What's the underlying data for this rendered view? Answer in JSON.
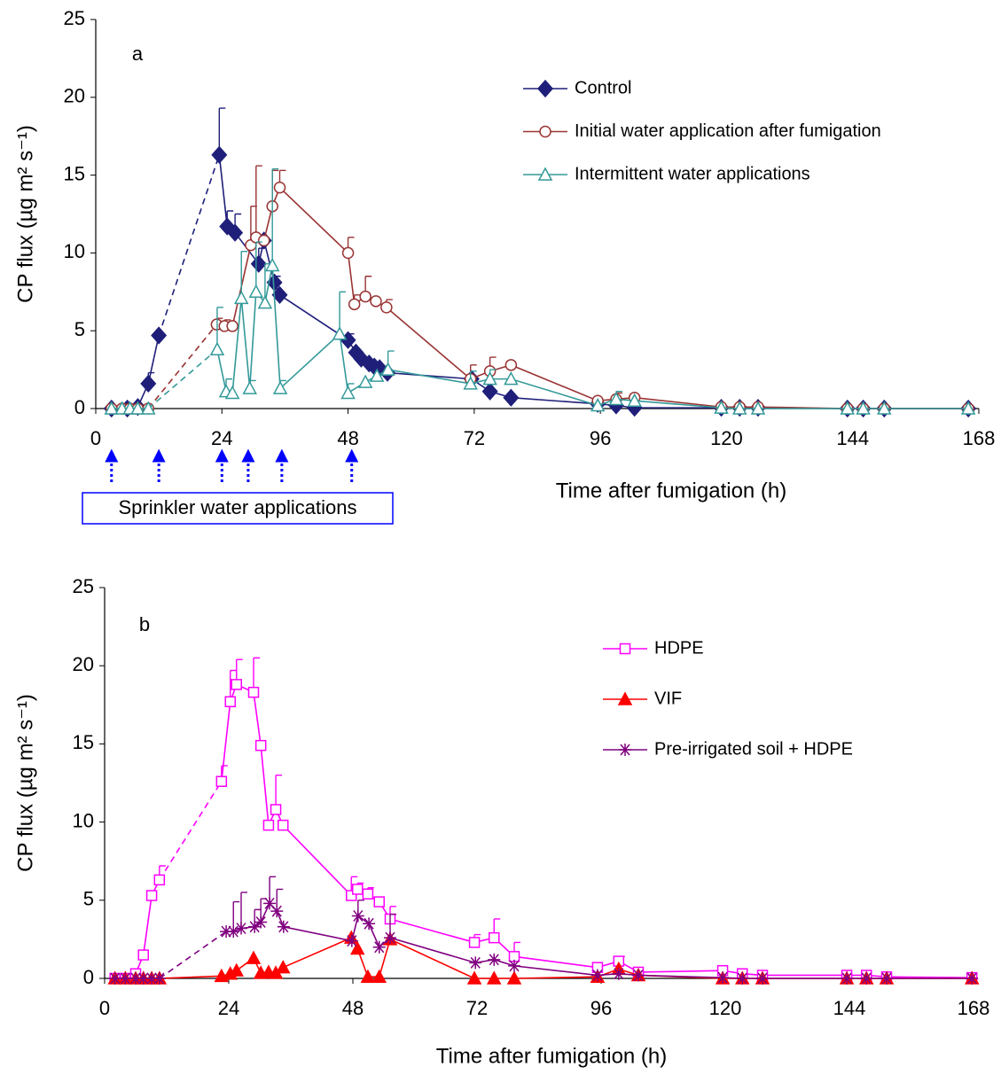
{
  "chart_data": [
    {
      "type": "line",
      "panel_label": "a",
      "x_label": "Time after fumigation (h)",
      "y_label": "CP flux (µg m² s⁻¹)",
      "xlim": [
        0,
        168
      ],
      "xticks": [
        0,
        24,
        48,
        72,
        96,
        120,
        144,
        168
      ],
      "ylim": [
        0,
        25
      ],
      "yticks": [
        0,
        5,
        10,
        15,
        20,
        25
      ],
      "grid": false,
      "legend": "upper right",
      "annotation": "Sprinkler water applications",
      "annotation_color": "#0000ff",
      "sprinkler_times": [
        3,
        12,
        24,
        29,
        35.4,
        48.7
      ],
      "series": [
        {
          "name": "Control",
          "color": "#1f1f7a",
          "marker": "diamond",
          "filled": true,
          "dashed_after": 4,
          "x": [
            3,
            6,
            8,
            10,
            12,
            23.5,
            25,
            26.5,
            31,
            32,
            34,
            35,
            48,
            49.5,
            50.5,
            52,
            53,
            54,
            55.5,
            71.5,
            75,
            79,
            95.5,
            99,
            102.5,
            119,
            122.5,
            126,
            143,
            146,
            150,
            166
          ],
          "values": [
            0,
            0,
            0.1,
            1.6,
            4.7,
            16.3,
            11.7,
            11.3,
            9.3,
            10.8,
            8.1,
            7.3,
            4.4,
            3.6,
            3.2,
            2.9,
            2.7,
            2.6,
            2.3,
            1.9,
            1.1,
            0.7,
            0.3,
            0.2,
            0.05,
            0.05,
            0.05,
            0.05,
            0,
            0,
            0,
            0
          ],
          "errors": [
            0,
            0,
            0,
            0.7,
            0,
            3,
            1,
            1.2,
            1,
            0,
            0.4,
            0,
            0.4,
            0,
            0,
            0,
            0,
            0,
            0,
            0,
            0,
            0,
            0,
            0,
            0,
            0,
            0,
            0,
            0,
            0,
            0,
            0
          ]
        },
        {
          "name": "Initial water application after fumigation",
          "color": "#993333",
          "marker": "circle",
          "filled": false,
          "dashed_after": 4,
          "x": [
            3,
            5,
            6.5,
            8,
            10,
            23,
            24.5,
            26,
            29.5,
            30.5,
            32,
            33.6,
            35,
            48,
            49.2,
            51.3,
            53.3,
            55.3,
            71.3,
            75,
            79,
            95.5,
            99,
            102.5,
            119,
            122.5,
            126,
            143,
            146,
            150,
            166
          ],
          "values": [
            0,
            0,
            0,
            0,
            0,
            5.4,
            5.3,
            5.3,
            10.5,
            11.0,
            10.8,
            13.0,
            14.2,
            10.0,
            6.7,
            7.2,
            6.9,
            6.5,
            1.9,
            2.4,
            2.8,
            0.5,
            0.6,
            0.7,
            0.1,
            0.1,
            0.1,
            0,
            0,
            0,
            0
          ],
          "errors": [
            0,
            0,
            0,
            0,
            0,
            0.4,
            0.4,
            0,
            2.5,
            4.6,
            0,
            2.3,
            1.1,
            1.0,
            0.6,
            1.3,
            0,
            0.5,
            0.9,
            0.9,
            0,
            0,
            0.4,
            0,
            0,
            0,
            0,
            0,
            0,
            0,
            0
          ]
        },
        {
          "name": "Intermittent water applications",
          "color": "#339999",
          "marker": "triangle",
          "filled": false,
          "dashed_after": 4,
          "x": [
            3,
            5,
            6.5,
            8,
            10,
            23.1,
            24.8,
            26,
            27.7,
            29.3,
            30.5,
            32.2,
            33.6,
            35.1,
            46.4,
            48,
            51.3,
            53.5,
            55.6,
            71.3,
            75,
            79,
            95.5,
            99,
            102.5,
            119,
            122.5,
            126,
            143,
            146,
            150,
            166
          ],
          "values": [
            0,
            0,
            0,
            0,
            0,
            3.8,
            1.1,
            1.0,
            7.1,
            1.3,
            7.5,
            6.8,
            9.2,
            1.3,
            4.8,
            1.0,
            1.7,
            2.1,
            2.5,
            1.6,
            1.9,
            1.9,
            0.2,
            0.6,
            0.5,
            0.05,
            0,
            0,
            0,
            0,
            0,
            0
          ],
          "errors": [
            0,
            0,
            0,
            0,
            0,
            2.7,
            0.8,
            0,
            3,
            0.5,
            3.2,
            2.5,
            6.2,
            0.5,
            2.7,
            0.6,
            0,
            0,
            1.2,
            0.8,
            0.6,
            0,
            0,
            0.5,
            0,
            0,
            0,
            0,
            0,
            0,
            0,
            0
          ]
        }
      ]
    },
    {
      "type": "line",
      "panel_label": "b",
      "x_label": "Time after fumigation (h)",
      "y_label": "CP flux (µg m² s⁻¹)",
      "xlim": [
        0,
        168
      ],
      "xticks": [
        0,
        24,
        48,
        72,
        96,
        120,
        144,
        168
      ],
      "ylim": [
        0,
        25
      ],
      "yticks": [
        0,
        5,
        10,
        15,
        20,
        25
      ],
      "grid": false,
      "legend": "upper right",
      "series": [
        {
          "name": "HDPE",
          "color": "#ff00ff",
          "marker": "square",
          "filled": false,
          "dashed_after": 5,
          "x": [
            2,
            4,
            6,
            7.5,
            9.1,
            10.6,
            22.6,
            24.3,
            25.5,
            28.8,
            30.2,
            31.7,
            33.1,
            34.5,
            47.7,
            48.9,
            50.9,
            53.1,
            55.2,
            71.5,
            75.3,
            79.2,
            95.3,
            99.4,
            103.2,
            119.5,
            123.3,
            127.2,
            143.5,
            147.3,
            151.2,
            167.7
          ],
          "values": [
            0,
            0,
            0.3,
            1.5,
            5.3,
            6.3,
            12.6,
            17.7,
            18.8,
            18.3,
            14.9,
            9.8,
            10.8,
            9.8,
            5.3,
            5.7,
            5.4,
            4.9,
            3.8,
            2.3,
            2.6,
            1.4,
            0.7,
            1.1,
            0.4,
            0.5,
            0.3,
            0.2,
            0.2,
            0.2,
            0.1,
            0.05
          ],
          "errors": [
            0,
            0,
            0,
            0,
            0,
            0.9,
            1.0,
            2.0,
            1.6,
            2.2,
            0,
            0,
            2.2,
            0,
            1.2,
            0.4,
            0.4,
            0,
            0.8,
            0.5,
            1.2,
            0.9,
            0,
            0.3,
            0,
            0,
            0,
            0,
            0,
            0,
            0,
            0
          ]
        },
        {
          "name": "VIF",
          "color": "#ff0000",
          "marker": "triangle",
          "filled": true,
          "x": [
            2,
            4,
            6,
            7.5,
            9.1,
            10.6,
            22.6,
            24.3,
            25.5,
            28.8,
            30.2,
            31.7,
            33.1,
            34.5,
            47.7,
            48.9,
            50.9,
            53.1,
            55.2,
            71.5,
            75.3,
            79.2,
            95.3,
            99.4,
            103.2,
            119.5,
            123.3,
            127.2,
            143.5,
            147.3,
            151.2,
            167.7
          ],
          "values": [
            0,
            0,
            0,
            0,
            0,
            0,
            0.15,
            0.3,
            0.5,
            1.3,
            0.35,
            0.4,
            0.35,
            0.7,
            2.6,
            1.9,
            0.1,
            0.1,
            2.5,
            0,
            0,
            0,
            0.1,
            0.6,
            0.2,
            0,
            0,
            0,
            0,
            0,
            0,
            0
          ]
        },
        {
          "name": "Pre-irrigated soil + HDPE",
          "color": "#800080",
          "marker": "star",
          "filled": false,
          "dashed_after": 5,
          "x": [
            2,
            4,
            6,
            7.5,
            9.1,
            10.6,
            23.5,
            24.9,
            26.4,
            29,
            30.2,
            31.9,
            33.3,
            34.6,
            47.8,
            49,
            51.1,
            53.1,
            55.2,
            71.7,
            75.3,
            79.2,
            95.3,
            99.4,
            103.2,
            119.5,
            123.3,
            127.2,
            143.5,
            147.3,
            151.2,
            167.7
          ],
          "values": [
            0,
            0,
            0,
            0,
            0,
            0,
            3.0,
            3.0,
            3.2,
            3.3,
            3.6,
            4.8,
            4.3,
            3.3,
            2.4,
            4.0,
            3.5,
            2.0,
            2.6,
            1.0,
            1.2,
            0.8,
            0.2,
            0.3,
            0.2,
            0.05,
            0,
            0,
            0,
            0,
            0,
            0
          ],
          "errors": [
            0,
            0,
            0,
            0,
            0,
            0,
            0,
            1.9,
            2.3,
            1.1,
            1.5,
            1.7,
            1.4,
            0,
            0,
            1.0,
            0,
            0,
            1.5,
            0,
            0,
            0,
            0,
            0,
            0,
            0,
            0,
            0,
            0,
            0,
            0,
            0
          ]
        }
      ]
    }
  ]
}
